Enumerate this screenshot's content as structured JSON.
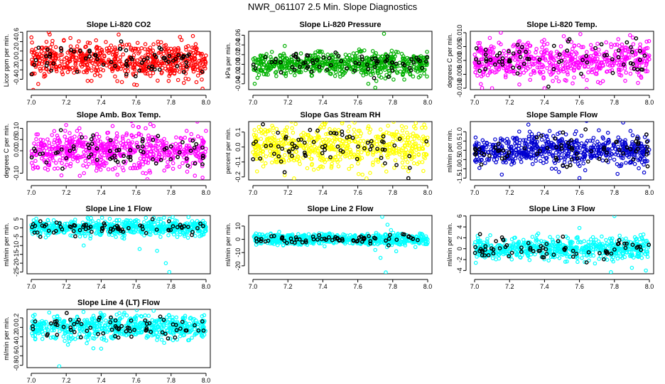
{
  "title": "NWR_061107  2.5 Min. Slope Diagnostics",
  "chart_data": [
    {
      "type": "scatter",
      "title": "Slope Li-820 CO2",
      "ylabel": "Licor ppm per min.",
      "xlim": [
        7.0,
        8.0
      ],
      "xticks": [
        "7.0",
        "7.2",
        "7.4",
        "7.6",
        "7.8",
        "8.0"
      ],
      "ylim": [
        -0.62,
        0.62
      ],
      "yticks": [
        -0.4,
        -0.2,
        0.0,
        0.2,
        0.4,
        0.6
      ],
      "ytick_labels": [
        "-0.4",
        "-0.2",
        "0.0",
        "0.2",
        "0.4",
        "0.6"
      ],
      "color": "#ff0000",
      "spread": 0.18,
      "n": 620,
      "outliers": [
        [
          7.1,
          0.6
        ],
        [
          7.98,
          -0.6
        ],
        [
          7.04,
          -0.5
        ],
        [
          7.98,
          -0.25
        ],
        [
          7.5,
          0.55
        ]
      ]
    },
    {
      "type": "scatter",
      "title": "Slope Li-820 Pressure",
      "ylabel": "kPa per min.",
      "xlim": [
        7.0,
        8.0
      ],
      "xticks": [
        "7.0",
        "7.2",
        "7.4",
        "7.6",
        "7.8",
        "8.0"
      ],
      "ylim": [
        -0.052,
        0.068
      ],
      "yticks": [
        -0.04,
        -0.02,
        0.0,
        0.02,
        0.04,
        0.06
      ],
      "ytick_labels": [
        "-0.04",
        "-0.02",
        "0.00",
        "0.02",
        "0.04",
        "0.06"
      ],
      "color": "#00b000",
      "spread": 0.012,
      "n": 620,
      "outliers": [
        [
          7.75,
          0.063
        ],
        [
          7.7,
          -0.048
        ],
        [
          7.66,
          -0.04
        ],
        [
          7.01,
          -0.04
        ]
      ]
    },
    {
      "type": "scatter",
      "title": "Slope Li-820 Temp.",
      "ylabel": "degrees C per min.",
      "xlim": [
        7.0,
        8.0
      ],
      "xticks": [
        "7.0",
        "7.2",
        "7.4",
        "7.6",
        "7.8",
        "8.0"
      ],
      "ylim": [
        -0.0105,
        0.0105
      ],
      "yticks": [
        -0.01,
        -0.005,
        0.0,
        0.005,
        0.01
      ],
      "ytick_labels": [
        "-0.010",
        "-0.005",
        "0.000",
        "0.005",
        "0.010"
      ],
      "color": "#ff00ff",
      "spread": 0.0035,
      "n": 580,
      "outliers": [
        [
          7.15,
          0.01
        ],
        [
          7.4,
          -0.01
        ],
        [
          7.1,
          -0.01
        ]
      ]
    },
    {
      "type": "scatter",
      "title": "Slope Amb. Box Temp.",
      "ylabel": "degrees C per min.",
      "xlim": [
        7.0,
        8.0
      ],
      "xticks": [
        "7.0",
        "7.2",
        "7.4",
        "7.6",
        "7.8",
        "8.0"
      ],
      "ylim": [
        -0.13,
        0.13
      ],
      "yticks": [
        -0.1,
        0.0,
        0.05,
        0.1
      ],
      "ytick_labels": [
        "-0.10",
        "0.00",
        "0.05",
        "0.10"
      ],
      "color": "#ff00ff",
      "spread": 0.042,
      "n": 620,
      "outliers": [
        [
          7.95,
          0.13
        ],
        [
          7.98,
          -0.12
        ],
        [
          7.7,
          0.11
        ]
      ]
    },
    {
      "type": "scatter",
      "title": "Slope Gas Stream RH",
      "ylabel": "percent per min.",
      "xlim": [
        7.0,
        8.0
      ],
      "xticks": [
        "7.0",
        "7.2",
        "7.4",
        "7.6",
        "7.8",
        "8.0"
      ],
      "ylim": [
        -0.22,
        0.17
      ],
      "yticks": [
        -0.2,
        -0.1,
        0.0,
        0.1
      ],
      "ytick_labels": [
        "-0.2",
        "-0.1",
        "0.0",
        "0.1"
      ],
      "color": "#ffff00",
      "spread": 0.075,
      "n": 600,
      "outliers": [
        [
          7.65,
          -0.21
        ],
        [
          7.98,
          0.15
        ]
      ]
    },
    {
      "type": "scatter",
      "title": "Slope Sample Flow",
      "ylabel": "ml/min per min.",
      "xlim": [
        7.0,
        8.0
      ],
      "xticks": [
        "7.0",
        "7.2",
        "7.4",
        "7.6",
        "7.8",
        "8.0"
      ],
      "ylim": [
        -1.6,
        1.55
      ],
      "yticks": [
        -1.5,
        -1.0,
        -0.5,
        0.0,
        0.5,
        1.0
      ],
      "ytick_labels": [
        "-1.5",
        "-1.0",
        "-0.5",
        "0.0",
        "0.5",
        "1.0"
      ],
      "color": "#0000d0",
      "spread": 0.42,
      "n": 620,
      "outliers": [
        [
          7.85,
          1.5
        ],
        [
          7.6,
          -1.5
        ],
        [
          7.97,
          -1.2
        ]
      ]
    },
    {
      "type": "scatter",
      "title": "Slope Line 1 Flow",
      "ylabel": "ml/min per min.",
      "xlim": [
        7.0,
        8.0
      ],
      "xticks": [
        "7.0",
        "7.2",
        "7.4",
        "7.6",
        "7.8",
        "8.0"
      ],
      "ylim": [
        -26,
        7
      ],
      "yticks": [
        -25,
        -20,
        -15,
        -10,
        -5,
        0,
        5
      ],
      "ytick_labels": [
        "-25",
        "-20",
        "-15",
        "-10",
        "-5",
        "0",
        "5"
      ],
      "color": "#00ffff",
      "spread": 2.2,
      "n": 620,
      "outliers": [
        [
          7.79,
          -25
        ],
        [
          7.77,
          -20
        ],
        [
          7.62,
          -12
        ],
        [
          7.72,
          -13
        ],
        [
          7.3,
          -10
        ],
        [
          7.74,
          5
        ]
      ]
    },
    {
      "type": "scatter",
      "title": "Slope Line 2 Flow",
      "ylabel": "ml/min per min.",
      "xlim": [
        7.0,
        8.0
      ],
      "xticks": [
        "7.0",
        "7.2",
        "7.4",
        "7.6",
        "7.8",
        "8.0"
      ],
      "ylim": [
        -26,
        18
      ],
      "yticks": [
        -20,
        -10,
        0,
        10
      ],
      "ytick_labels": [
        "-20",
        "-10",
        "0",
        "10"
      ],
      "color": "#00ffff",
      "spread": 2.0,
      "n": 620,
      "outliers": [
        [
          7.76,
          -25
        ],
        [
          7.74,
          17
        ],
        [
          7.77,
          11
        ],
        [
          7.79,
          7
        ],
        [
          7.7,
          -8
        ],
        [
          7.73,
          -14
        ],
        [
          7.82,
          -9
        ]
      ]
    },
    {
      "type": "scatter",
      "title": "Slope Line 3 Flow",
      "ylabel": "ml/min per min.",
      "xlim": [
        7.0,
        8.0
      ],
      "xticks": [
        "7.0",
        "7.2",
        "7.4",
        "7.6",
        "7.8",
        "8.0"
      ],
      "ylim": [
        -4.6,
        6.1
      ],
      "yticks": [
        -4,
        -2,
        0,
        2,
        4,
        6
      ],
      "ytick_labels": [
        "-4",
        "-2",
        "0",
        "2",
        "4",
        "6"
      ],
      "color": "#00ffff",
      "spread": 1.0,
      "n": 620,
      "outliers": [
        [
          7.8,
          6
        ],
        [
          7.78,
          -4.3
        ],
        [
          7.98,
          -4
        ],
        [
          7.6,
          3.8
        ],
        [
          7.9,
          -3.5
        ]
      ]
    },
    {
      "type": "scatter",
      "title": "Slope Line 4 (LT) Flow",
      "ylabel": "ml/min per min.",
      "xlim": [
        7.0,
        8.0
      ],
      "xticks": [
        "7.0",
        "7.2",
        "7.4",
        "7.6",
        "7.8",
        "8.0"
      ],
      "ylim": [
        -0.85,
        0.38
      ],
      "yticks": [
        -0.8,
        -0.6,
        -0.4,
        -0.2,
        0.0,
        0.2
      ],
      "ytick_labels": [
        "-0.8",
        "-0.6",
        "-0.4",
        "-0.2",
        "0.0",
        "0.2"
      ],
      "color": "#00ffff",
      "spread": 0.13,
      "n": 620,
      "outliers": [
        [
          7.16,
          -0.82
        ],
        [
          7.7,
          0.35
        ],
        [
          7.4,
          -0.45
        ]
      ]
    }
  ]
}
